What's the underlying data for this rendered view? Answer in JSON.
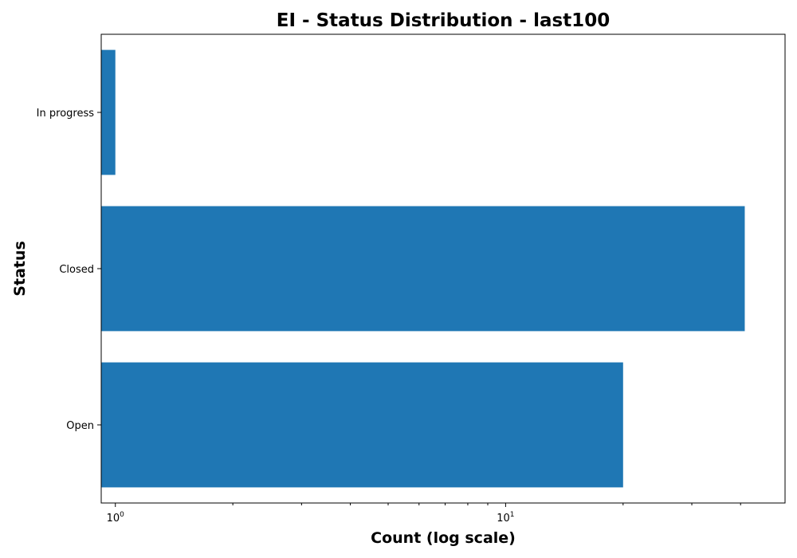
{
  "chart_data": {
    "type": "bar",
    "orientation": "horizontal",
    "title": "EI - Status Distribution - last100",
    "xlabel": "Count (log scale)",
    "ylabel": "Status",
    "x_scale": "log",
    "xlim": [
      0.92,
      52
    ],
    "categories": [
      "In progress",
      "Closed",
      "Open"
    ],
    "values": [
      1,
      41,
      20
    ],
    "x_major_ticks": [
      {
        "value": 1,
        "base": "10",
        "exponent": "0"
      },
      {
        "value": 10,
        "base": "10",
        "exponent": "1"
      }
    ],
    "x_minor_ticks": [
      2,
      3,
      4,
      5,
      6,
      7,
      8,
      9,
      20,
      30,
      40
    ],
    "bar_color": "#1f77b4",
    "grid": false,
    "legend": "none"
  }
}
